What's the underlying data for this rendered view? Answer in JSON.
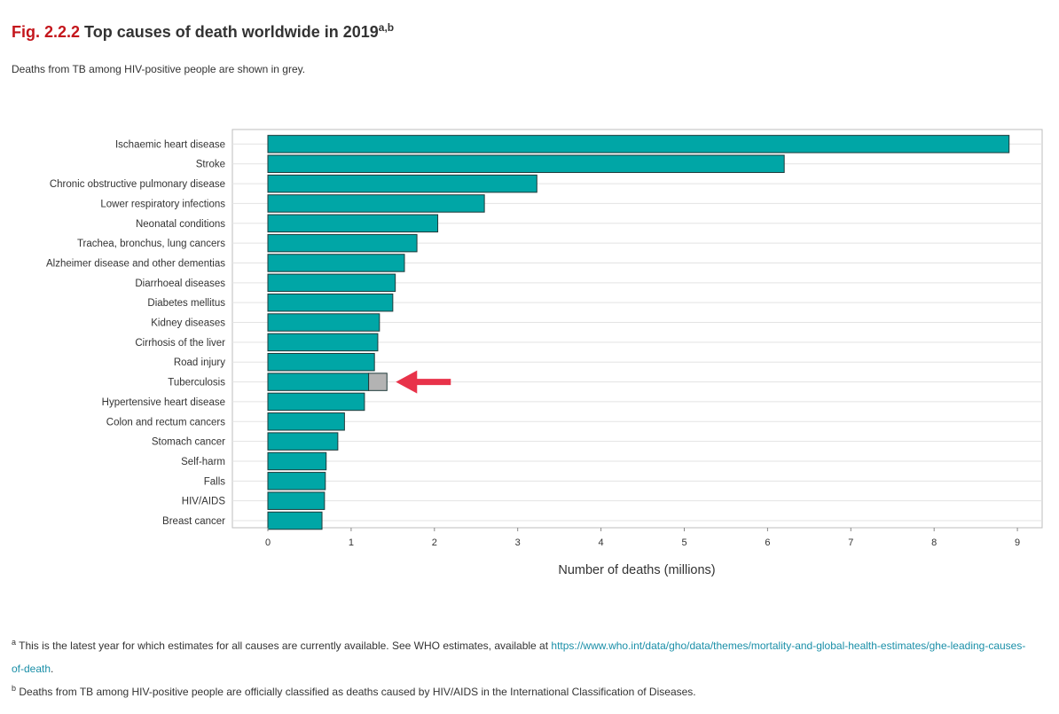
{
  "figure": {
    "number": "Fig. 2.2.2",
    "title": "Top causes of death worldwide in 2019",
    "title_sup": "a,b",
    "subtitle": "Deaths from TB among HIV-positive people are shown in grey."
  },
  "chart_data": {
    "type": "bar",
    "orientation": "horizontal",
    "stacked": true,
    "categories": [
      "Ischaemic heart disease",
      "Stroke",
      "Chronic obstructive pulmonary disease",
      "Lower respiratory infections",
      "Neonatal conditions",
      "Trachea, bronchus, lung cancers",
      "Alzheimer disease and other dementias",
      "Diarrhoeal diseases",
      "Diabetes mellitus",
      "Kidney diseases",
      "Cirrhosis of the liver",
      "Road injury",
      "Tuberculosis",
      "Hypertensive heart disease",
      "Colon and rectum cancers",
      "Stomach cancer",
      "Self-harm",
      "Falls",
      "HIV/AIDS",
      "Breast cancer"
    ],
    "series": [
      {
        "color": "#00a6a6",
        "values": [
          8.9,
          6.2,
          3.23,
          2.6,
          2.04,
          1.79,
          1.64,
          1.53,
          1.5,
          1.34,
          1.32,
          1.28,
          1.21,
          1.16,
          0.92,
          0.84,
          0.7,
          0.69,
          0.68,
          0.65
        ]
      },
      {
        "color": "#b3b3b3",
        "values": [
          0,
          0,
          0,
          0,
          0,
          0,
          0,
          0,
          0,
          0,
          0,
          0,
          0.22,
          0,
          0,
          0,
          0,
          0,
          0,
          0
        ]
      }
    ],
    "title": "",
    "xlabel": "Number of deaths (millions)",
    "ylabel": "",
    "xlim": [
      -0.4,
      9.3
    ],
    "xticks": [
      0,
      1,
      2,
      3,
      4,
      5,
      6,
      7,
      8,
      9
    ],
    "grid": true,
    "legend": "none",
    "annotation": {
      "type": "arrow",
      "target": "Tuberculosis",
      "color": "#e8334a"
    }
  },
  "footnotes": {
    "a_marker": "a",
    "a_text": " This is the latest year for which estimates for all causes are currently available. See WHO estimates, available at ",
    "a_link": "https://www.who.int/data/gho/data/themes/mortality-and-global-health-estimates/ghe-leading-causes-of-death",
    "a_end": ".",
    "b_marker": "b",
    "b_text": " Deaths from TB among HIV-positive people are officially classified as deaths caused by HIV/AIDS in the International Classification of Diseases."
  }
}
